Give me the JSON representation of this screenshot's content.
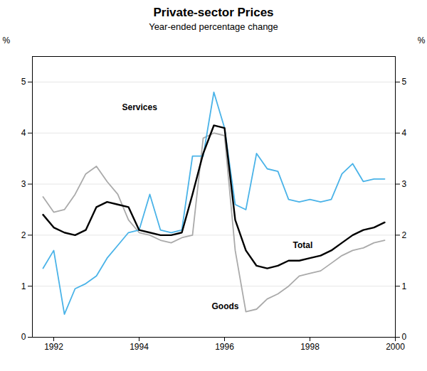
{
  "chart_data": {
    "type": "line",
    "title": "Private-sector Prices",
    "subtitle": "Year-ended percentage change",
    "ylabel": "%",
    "y2label": "%",
    "xlim": [
      1991.5,
      2000.0
    ],
    "xticks": [
      1992,
      1994,
      1996,
      1998,
      2000
    ],
    "ylim": [
      0,
      5.5
    ],
    "yticks": [
      0,
      1,
      2,
      3,
      4,
      5
    ],
    "y2lim": [
      0,
      5.5
    ],
    "y2ticks": [
      0,
      1,
      2,
      3,
      4,
      5
    ],
    "grid": true,
    "x": [
      1991.75,
      1992.0,
      1992.25,
      1992.5,
      1992.75,
      1993.0,
      1993.25,
      1993.5,
      1993.75,
      1994.0,
      1994.25,
      1994.5,
      1994.75,
      1995.0,
      1995.25,
      1995.5,
      1995.75,
      1996.0,
      1996.25,
      1996.5,
      1996.75,
      1997.0,
      1997.25,
      1997.5,
      1997.75,
      1998.0,
      1998.25,
      1998.5,
      1998.75,
      1999.0,
      1999.25,
      1999.5,
      1999.75
    ],
    "series": [
      {
        "name": "Services",
        "color": "#4ab3e8",
        "values": [
          1.35,
          1.7,
          0.45,
          0.95,
          1.05,
          1.2,
          1.55,
          1.8,
          2.05,
          2.1,
          2.8,
          2.1,
          2.05,
          2.1,
          3.55,
          3.55,
          4.8,
          4.1,
          2.6,
          2.5,
          3.6,
          3.3,
          3.25,
          2.7,
          2.65,
          2.7,
          2.65,
          2.7,
          3.2,
          3.4,
          3.05,
          3.1,
          3.1
        ]
      },
      {
        "name": "Total",
        "color": "#000000",
        "values": [
          2.4,
          2.15,
          2.05,
          2.0,
          2.1,
          2.55,
          2.65,
          2.6,
          2.55,
          2.1,
          2.05,
          2.0,
          2.0,
          2.05,
          2.8,
          3.6,
          4.15,
          4.1,
          2.3,
          1.7,
          1.4,
          1.35,
          1.4,
          1.5,
          1.5,
          1.55,
          1.6,
          1.7,
          1.85,
          2.0,
          2.1,
          2.15,
          2.25
        ]
      },
      {
        "name": "Goods",
        "color": "#aaaaaa",
        "values": [
          2.75,
          2.45,
          2.5,
          2.8,
          3.2,
          3.35,
          3.05,
          2.8,
          2.3,
          2.05,
          2.0,
          1.9,
          1.85,
          1.95,
          2.0,
          3.9,
          4.0,
          3.95,
          1.7,
          0.5,
          0.55,
          0.75,
          0.85,
          1.0,
          1.2,
          1.25,
          1.3,
          1.45,
          1.6,
          1.7,
          1.75,
          1.85,
          1.9
        ]
      }
    ],
    "annotations": [
      {
        "text": "Services",
        "x": 1993.6,
        "y": 4.45
      },
      {
        "text": "Total",
        "x": 1997.6,
        "y": 1.75
      },
      {
        "text": "Goods",
        "x": 1995.7,
        "y": 0.55
      }
    ]
  }
}
